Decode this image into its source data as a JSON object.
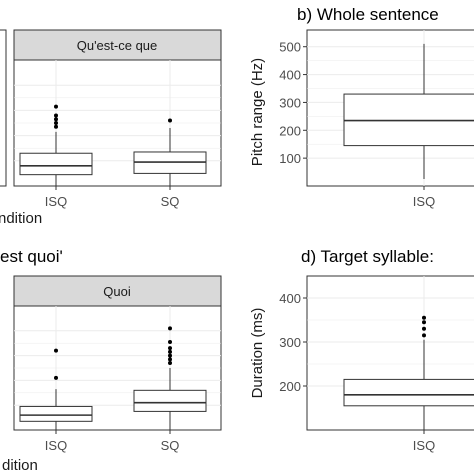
{
  "colors": {
    "panel_bg": "#ffffff",
    "panel_border": "#333333",
    "grid": "#ebebeb",
    "strip_bg": "#d9d9d9",
    "box_line": "#333333",
    "text": "#1a1a1a",
    "tick_text": "#4d4d4d"
  },
  "chart_data": [
    {
      "type": "boxplot",
      "panel": "top-left-partial",
      "strip_label": "",
      "title": "",
      "ylabel": "",
      "xlabel": "",
      "categories": [],
      "boxes": []
    },
    {
      "type": "boxplot",
      "panel": "top-middle",
      "strip_label": "Qu'est-ce que",
      "title": "",
      "ylabel": "",
      "xlabel": "",
      "xlabel_partial": "ndition",
      "ylim": [
        0,
        500
      ],
      "categories": [
        "ISQ",
        "SQ"
      ],
      "boxes": [
        {
          "category": "ISQ",
          "q1": 45,
          "median": 80,
          "q3": 130,
          "whisker_low": 0,
          "whisker_high": 215,
          "outliers": [
            235,
            250,
            265,
            280,
            315
          ]
        },
        {
          "category": "SQ",
          "q1": 50,
          "median": 95,
          "q3": 135,
          "whisker_low": 0,
          "whisker_high": 230,
          "outliers": [
            260
          ]
        }
      ]
    },
    {
      "type": "boxplot",
      "panel": "top-right",
      "title": "b) Whole sentence",
      "ylabel": "Pitch range (Hz)",
      "xlabel": "",
      "yticks": [
        100,
        200,
        300,
        400,
        500
      ],
      "ylim": [
        0,
        560
      ],
      "categories": [
        "ISQ"
      ],
      "boxes": [
        {
          "category": "ISQ",
          "q1": 145,
          "median": 235,
          "q3": 330,
          "whisker_low": 25,
          "whisker_high": 510,
          "outliers": []
        }
      ]
    },
    {
      "type": "boxplot",
      "panel": "bottom-middle",
      "title": "est quoi'",
      "strip_label": "Quoi",
      "ylabel": "",
      "xlabel": "",
      "xlabel_partial": "dition",
      "ylim": [
        0,
        500
      ],
      "categories": [
        "ISQ",
        "SQ"
      ],
      "boxes": [
        {
          "category": "ISQ",
          "q1": 35,
          "median": 60,
          "q3": 95,
          "whisker_low": 0,
          "whisker_high": 165,
          "outliers": [
            210,
            320
          ]
        },
        {
          "category": "SQ",
          "q1": 75,
          "median": 110,
          "q3": 160,
          "whisker_low": 0,
          "whisker_high": 250,
          "outliers": [
            270,
            285,
            300,
            315,
            330,
            355,
            410
          ]
        }
      ]
    },
    {
      "type": "boxplot",
      "panel": "bottom-right",
      "title": "d) Target syllable:",
      "ylabel": "Duration (ms)",
      "xlabel": "",
      "yticks": [
        200,
        300,
        400
      ],
      "ylim": [
        100,
        450
      ],
      "categories": [
        "ISQ"
      ],
      "boxes": [
        {
          "category": "ISQ",
          "q1": 155,
          "median": 180,
          "q3": 215,
          "whisker_low": 100,
          "whisker_high": 305,
          "outliers": [
            315,
            330,
            345,
            355
          ]
        }
      ]
    }
  ]
}
